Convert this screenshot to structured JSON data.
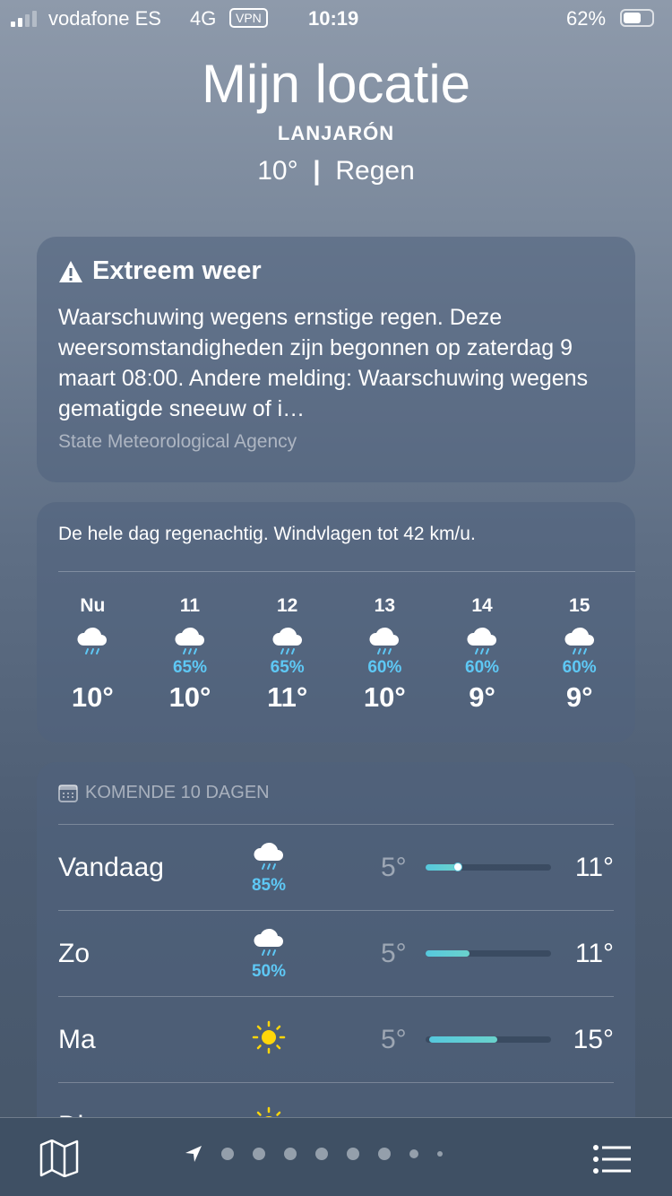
{
  "status": {
    "carrier": "vodafone ES",
    "network": "4G",
    "vpn": "VPN",
    "time": "10:19",
    "battery": "62%",
    "battery_level": 0.62,
    "signal_bars": 2
  },
  "header": {
    "title": "Mijn locatie",
    "city": "LANJARÓN",
    "temp": "10°",
    "separator": "|",
    "condition": "Regen"
  },
  "alert": {
    "icon": "warning-triangle-icon",
    "title": "Extreem weer",
    "text": "Waarschuwing wegens ernstige regen. Deze weersomstandigheden zijn begonnen op zaterdag 9 maart 08:00. Andere melding: Waarschuwing wegens gematigde sneeuw of i…",
    "source": "State Meteorological Agency"
  },
  "hourly": {
    "summary": "De hele dag regenachtig. Windvlagen tot 42 km/u.",
    "hours": [
      {
        "time": "Nu",
        "icon": "cloud-rain-icon",
        "precip": "",
        "temp": "10°"
      },
      {
        "time": "11",
        "icon": "cloud-rain-icon",
        "precip": "65%",
        "temp": "10°"
      },
      {
        "time": "12",
        "icon": "cloud-rain-icon",
        "precip": "65%",
        "temp": "11°"
      },
      {
        "time": "13",
        "icon": "cloud-rain-icon",
        "precip": "60%",
        "temp": "10°"
      },
      {
        "time": "14",
        "icon": "cloud-rain-icon",
        "precip": "60%",
        "temp": "9°"
      },
      {
        "time": "15",
        "icon": "cloud-rain-icon",
        "precip": "60%",
        "temp": "9°"
      }
    ]
  },
  "daily": {
    "header": "KOMENDE 10 DAGEN",
    "days": [
      {
        "day": "Vandaag",
        "icon": "cloud-rain-icon",
        "precip": "85%",
        "low": "5°",
        "high": "11°",
        "current": "10°"
      },
      {
        "day": "Zo",
        "icon": "cloud-drizzle-icon",
        "precip": "50%",
        "low": "5°",
        "high": "11°"
      },
      {
        "day": "Ma",
        "icon": "sun-icon",
        "precip": "",
        "low": "5°",
        "high": "15°"
      },
      {
        "day": "Di",
        "icon": "sun-icon",
        "precip": ""
      }
    ]
  },
  "bottom": {
    "page_count": 9,
    "current_page": 0
  },
  "colors": {
    "precip": "#5ec8f5",
    "bar": "#56c8dd",
    "sun": "#ffd60a"
  }
}
